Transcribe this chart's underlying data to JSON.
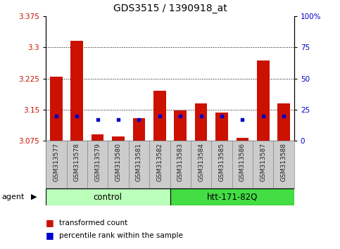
{
  "title": "GDS3515 / 1390918_at",
  "samples": [
    "GSM313577",
    "GSM313578",
    "GSM313579",
    "GSM313580",
    "GSM313581",
    "GSM313582",
    "GSM313583",
    "GSM313584",
    "GSM313585",
    "GSM313586",
    "GSM313587",
    "GSM313588"
  ],
  "transformed_count": [
    3.23,
    3.315,
    3.09,
    3.085,
    3.13,
    3.195,
    3.148,
    3.165,
    3.142,
    3.082,
    3.268,
    3.165
  ],
  "percentile_rank": [
    20,
    20,
    17,
    17,
    17,
    20,
    20,
    20,
    20,
    17,
    20,
    20
  ],
  "ylim_left": [
    3.075,
    3.375
  ],
  "ylim_right": [
    0,
    100
  ],
  "yticks_left": [
    3.075,
    3.15,
    3.225,
    3.3,
    3.375
  ],
  "yticks_right": [
    0,
    25,
    50,
    75,
    100
  ],
  "grid_lines": [
    3.15,
    3.225,
    3.3
  ],
  "bar_color": "#cc1100",
  "blue_color": "#0000cc",
  "background_color": "#ffffff",
  "plot_bg": "#ffffff",
  "xtick_bg": "#cccccc",
  "control_color": "#bbffbb",
  "treatment_color": "#44dd44",
  "control_label": "control",
  "treatment_label": "htt-171-82Q",
  "agent_label": "agent",
  "legend_transformed": "transformed count",
  "legend_percentile": "percentile rank within the sample",
  "n_control": 6,
  "n_treatment": 6,
  "base_value": 3.075
}
